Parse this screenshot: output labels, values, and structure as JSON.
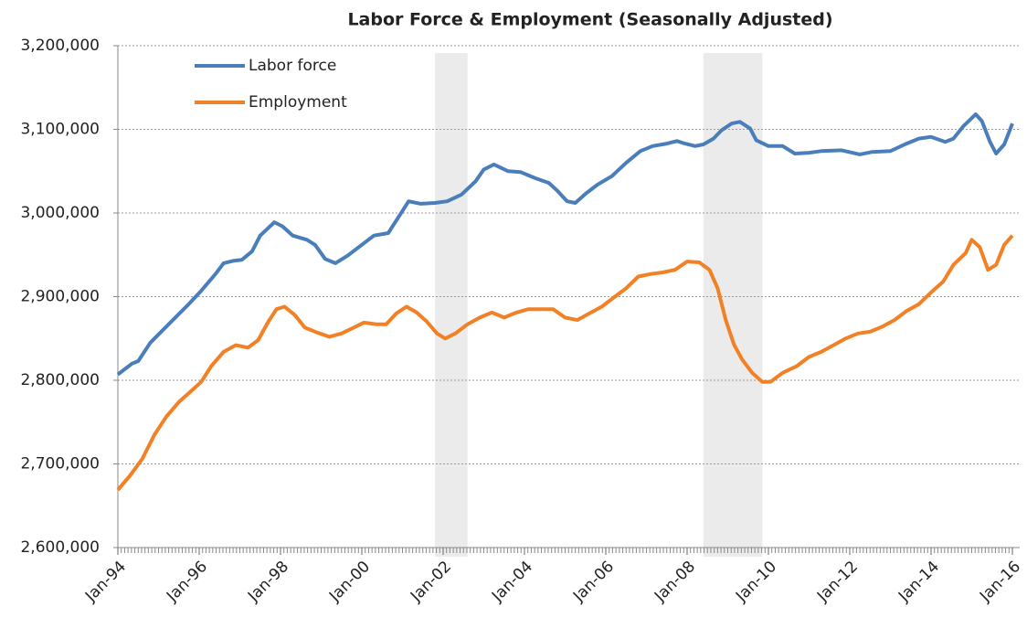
{
  "chart_data": {
    "type": "line",
    "title": "Labor Force & Employment (Seasonally Adjusted)",
    "xlim": [
      1994,
      2016
    ],
    "xticks": [
      {
        "value": 1994,
        "label": "Jan-94"
      },
      {
        "value": 1996,
        "label": "Jan-96"
      },
      {
        "value": 1998,
        "label": "Jan-98"
      },
      {
        "value": 2000,
        "label": "Jan-00"
      },
      {
        "value": 2002,
        "label": "Jan-02"
      },
      {
        "value": 2004,
        "label": "Jan-04"
      },
      {
        "value": 2006,
        "label": "Jan-06"
      },
      {
        "value": 2008,
        "label": "Jan-08"
      },
      {
        "value": 2010,
        "label": "Jan-10"
      },
      {
        "value": 2012,
        "label": "Jan-12"
      },
      {
        "value": 2014,
        "label": "Jan-14"
      },
      {
        "value": 2016,
        "label": "Jan-16"
      }
    ],
    "ylim": [
      2600000,
      3200000
    ],
    "yticks": [
      {
        "value": 2600000,
        "label": "2,600,000"
      },
      {
        "value": 2700000,
        "label": "2,700,000"
      },
      {
        "value": 2800000,
        "label": "2,800,000"
      },
      {
        "value": 2900000,
        "label": "2,900,000"
      },
      {
        "value": 3000000,
        "label": "3,000,000"
      },
      {
        "value": 3100000,
        "label": "3,100,000"
      },
      {
        "value": 3200000,
        "label": "3,200,000"
      }
    ],
    "grid": true,
    "legend": "top-left",
    "shaded_periods": [
      [
        2001.8,
        2002.6
      ],
      [
        2008.4,
        2009.85
      ]
    ],
    "series": [
      {
        "name": "Labor force",
        "color": "#4a7ebb",
        "x": [
          1994.0,
          1994.35,
          1994.5,
          1994.8,
          1995.25,
          1995.7,
          1996.05,
          1996.4,
          1996.6,
          1996.85,
          1997.05,
          1997.3,
          1997.5,
          1997.85,
          1998.05,
          1998.3,
          1998.65,
          1998.85,
          1999.1,
          1999.35,
          1999.65,
          2000.0,
          2000.3,
          2000.65,
          2000.9,
          2001.15,
          2001.45,
          2001.8,
          2002.1,
          2002.45,
          2002.8,
          2003.0,
          2003.25,
          2003.6,
          2003.9,
          2004.25,
          2004.6,
          2004.8,
          2005.05,
          2005.25,
          2005.5,
          2005.8,
          2006.15,
          2006.5,
          2006.85,
          2007.15,
          2007.5,
          2007.75,
          2007.95,
          2008.2,
          2008.4,
          2008.65,
          2008.85,
          2009.1,
          2009.3,
          2009.55,
          2009.7,
          2010.0,
          2010.35,
          2010.65,
          2011.0,
          2011.3,
          2011.8,
          2012.25,
          2012.55,
          2013.0,
          2013.35,
          2013.7,
          2014.0,
          2014.35,
          2014.55,
          2014.8,
          2015.1,
          2015.25,
          2015.45,
          2015.6,
          2015.8,
          2016.0
        ],
        "values": [
          2807000,
          2820000,
          2823000,
          2845000,
          2867000,
          2889000,
          2907000,
          2927000,
          2940000,
          2943000,
          2944000,
          2954000,
          2973000,
          2989000,
          2984000,
          2973000,
          2968000,
          2962000,
          2945000,
          2940000,
          2949000,
          2962000,
          2973000,
          2976000,
          2995000,
          3014000,
          3011000,
          3012000,
          3014000,
          3022000,
          3038000,
          3052000,
          3058000,
          3050000,
          3049000,
          3042000,
          3036000,
          3027000,
          3014000,
          3012000,
          3023000,
          3034000,
          3044000,
          3060000,
          3074000,
          3080000,
          3083000,
          3086000,
          3083000,
          3080000,
          3082000,
          3089000,
          3099000,
          3107000,
          3109000,
          3101000,
          3087000,
          3080000,
          3080000,
          3071000,
          3072000,
          3074000,
          3075000,
          3070000,
          3073000,
          3074000,
          3082000,
          3089000,
          3091000,
          3085000,
          3089000,
          3104000,
          3118000,
          3110000,
          3085000,
          3071000,
          3082000,
          3107000
        ]
      },
      {
        "name": "Employment",
        "color": "#f28025",
        "x": [
          1994.0,
          1994.3,
          1994.6,
          1994.9,
          1995.2,
          1995.5,
          1995.8,
          1996.05,
          1996.3,
          1996.6,
          1996.9,
          1997.2,
          1997.45,
          1997.7,
          1997.9,
          1998.1,
          1998.35,
          1998.6,
          1998.9,
          1999.2,
          1999.5,
          1999.8,
          2000.05,
          2000.35,
          2000.6,
          2000.85,
          2001.1,
          2001.35,
          2001.6,
          2001.85,
          2002.05,
          2002.3,
          2002.6,
          2002.9,
          2003.2,
          2003.5,
          2003.8,
          2004.1,
          2004.4,
          2004.7,
          2005.0,
          2005.3,
          2005.6,
          2005.9,
          2006.2,
          2006.5,
          2006.8,
          2007.1,
          2007.4,
          2007.7,
          2008.0,
          2008.3,
          2008.55,
          2008.75,
          2008.95,
          2009.15,
          2009.35,
          2009.6,
          2009.85,
          2010.05,
          2010.35,
          2010.7,
          2011.0,
          2011.3,
          2011.6,
          2011.9,
          2012.2,
          2012.5,
          2012.8,
          2013.1,
          2013.4,
          2013.7,
          2014.0,
          2014.3,
          2014.55,
          2014.85,
          2015.0,
          2015.2,
          2015.4,
          2015.6,
          2015.8,
          2016.0
        ],
        "values": [
          2669000,
          2686000,
          2706000,
          2735000,
          2757000,
          2774000,
          2787000,
          2798000,
          2817000,
          2834000,
          2842000,
          2839000,
          2848000,
          2870000,
          2885000,
          2888000,
          2878000,
          2863000,
          2857000,
          2852000,
          2856000,
          2863000,
          2869000,
          2867000,
          2867000,
          2880000,
          2888000,
          2881000,
          2870000,
          2856000,
          2850000,
          2856000,
          2867000,
          2875000,
          2881000,
          2875000,
          2881000,
          2885000,
          2885000,
          2885000,
          2875000,
          2872000,
          2880000,
          2888000,
          2899000,
          2910000,
          2924000,
          2927000,
          2929000,
          2932000,
          2942000,
          2941000,
          2932000,
          2910000,
          2872000,
          2843000,
          2825000,
          2809000,
          2798000,
          2798000,
          2809000,
          2817000,
          2828000,
          2834000,
          2842000,
          2850000,
          2856000,
          2858000,
          2864000,
          2872000,
          2883000,
          2891000,
          2905000,
          2918000,
          2938000,
          2952000,
          2968000,
          2959000,
          2932000,
          2938000,
          2962000,
          2973000
        ]
      }
    ]
  }
}
